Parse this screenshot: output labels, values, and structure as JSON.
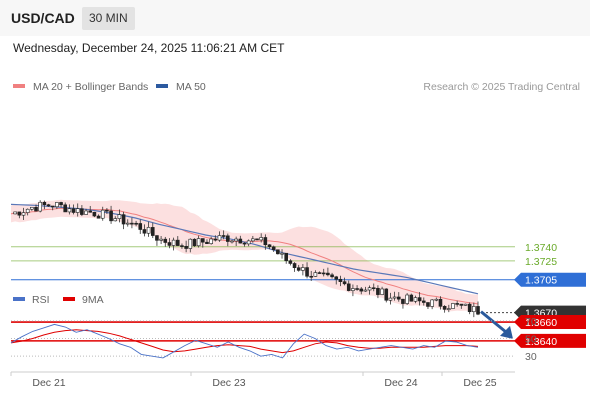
{
  "header": {
    "pair": "USD/CAD",
    "timeframe": "30 MIN"
  },
  "datetime": "Wednesday, December 24, 2025 11:06:21 AM CET",
  "legend_main": [
    {
      "label": "MA 20 + Bollinger Bands",
      "color": "#f08080"
    },
    {
      "label": "MA 50",
      "color": "#2c5aa0"
    }
  ],
  "legend_rsi": [
    {
      "label": "RSI",
      "color": "#4a72c8"
    },
    {
      "label": "9MA",
      "color": "#e00000"
    }
  ],
  "credit": "Research © 2025 Trading Central",
  "chart_data": {
    "type": "line",
    "instrument": "USD/CAD",
    "interval": "30 MIN",
    "x_ticks": [
      "Dec 21",
      "Dec 23",
      "Dec 24",
      "Dec 25"
    ],
    "price_range": [
      1.3625,
      1.3795
    ],
    "close_path": [
      1.3775,
      1.3782,
      1.3785,
      1.3779,
      1.3776,
      1.377,
      1.3762,
      1.3748,
      1.3742,
      1.3745,
      1.375,
      1.3748,
      1.3744,
      1.3725,
      1.3712,
      1.3705,
      1.3698,
      1.3694,
      1.3686,
      1.3682,
      1.368,
      1.3677,
      1.3672
    ],
    "ma50_path": [
      1.3785,
      1.3784,
      1.3782,
      1.378,
      1.3776,
      1.3771,
      1.3764,
      1.3758,
      1.3752,
      1.3748,
      1.3742,
      1.3734,
      1.3728,
      1.3722,
      1.3716,
      1.3712,
      1.3708,
      1.3702,
      1.3696,
      1.369
    ],
    "levels": [
      {
        "label": "1.3740",
        "value": 1.374,
        "type": "resistance",
        "color": "#6aaa2a"
      },
      {
        "label": "1.3725",
        "value": 1.3725,
        "type": "resistance",
        "color": "#6aaa2a"
      },
      {
        "label": "1.3705",
        "value": 1.3705,
        "type": "pivot",
        "color": "#2f6fd6"
      },
      {
        "label": "1.3670",
        "value": 1.367,
        "type": "last_price",
        "color": "#333333"
      },
      {
        "label": "1.3660",
        "value": 1.366,
        "type": "support",
        "color": "#e00000"
      },
      {
        "label": "1.3640",
        "value": 1.364,
        "type": "support",
        "color": "#e00000"
      }
    ],
    "rsi": {
      "levels": [
        70,
        50,
        30
      ],
      "range": [
        20,
        80
      ],
      "rsi_path": [
        45,
        52,
        58,
        62,
        66,
        63,
        57,
        60,
        55,
        50,
        44,
        40,
        32,
        30,
        28,
        35,
        42,
        48,
        44,
        40,
        46,
        40,
        36,
        30,
        32,
        28,
        44,
        55,
        50,
        42,
        38,
        40,
        36,
        38,
        40,
        42,
        40,
        38,
        42,
        40,
        47,
        46,
        42,
        40
      ],
      "ma9_path": [
        45,
        47,
        50,
        54,
        57,
        59,
        60,
        59,
        58,
        56,
        53,
        49,
        45,
        41,
        37,
        35,
        36,
        38,
        40,
        42,
        43,
        42,
        41,
        38,
        36,
        34,
        36,
        40,
        44,
        46,
        45,
        42,
        40,
        39,
        39,
        40,
        40,
        40,
        40,
        41,
        42,
        42,
        42,
        41
      ]
    }
  }
}
